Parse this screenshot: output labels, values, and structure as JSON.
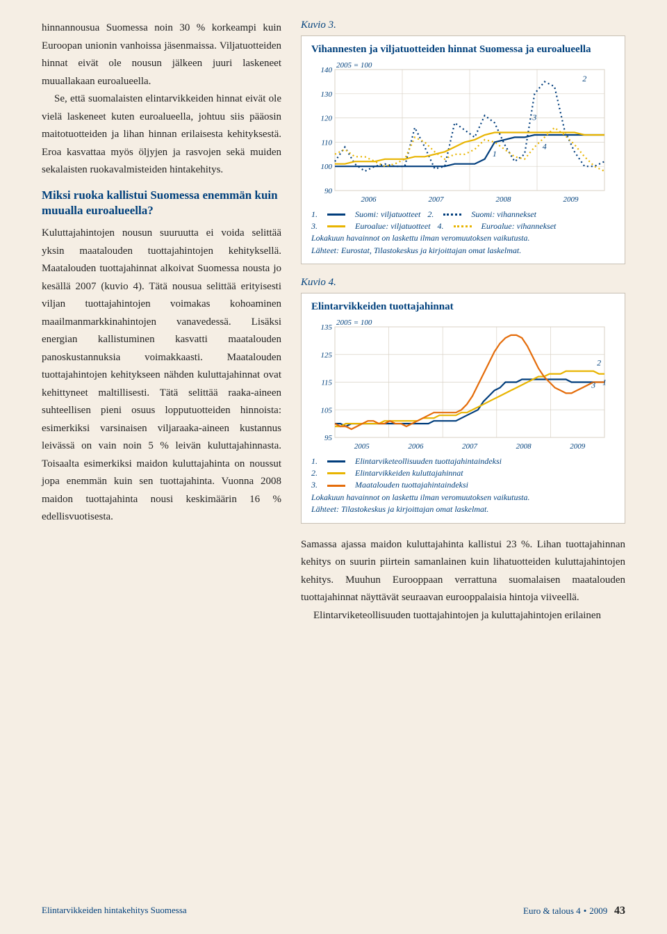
{
  "left": {
    "p1": "hinnannousua Suomessa noin 30 % korkeampi kuin Euroopan unionin vanhoissa jäsenmaissa. Viljatuotteiden hinnat eivät ole nousun jälkeen juuri laskeneet muuallakaan euroalueella.",
    "p1b": "Se, että suomalaisten elintarvikkeiden hinnat eivät ole vielä laskeneet kuten euroalueella, johtuu siis pääosin maitotuotteiden ja lihan hinnan erilaisesta kehityksestä. Eroa kasvattaa myös öljyjen ja rasvojen sekä muiden sekalaisten ruokavalmisteiden hintakehitys.",
    "subhead": "Miksi ruoka kallistui Suomessa enemmän kuin muualla euroalueella?",
    "p2": "Kuluttajahintojen nousun suuruutta ei voida selittää yksin maatalouden tuottajahintojen kehityksellä. Maatalouden tuottajahinnat alkoivat Suomessa nousta jo kesällä 2007 (kuvio 4). Tätä nousua selittää erityisesti viljan tuottajahintojen voimakas kohoaminen maailmanmarkkinahintojen vanavedessä. Lisäksi energian kallistuminen kasvatti maatalouden panoskustannuksia voimakkaasti. Maatalouden tuottajahintojen kehitykseen nähden kuluttajahinnat ovat kehittyneet maltillisesti. Tätä selittää raaka-aineen suhteellisen pieni osuus lopputuotteiden hinnoista: esimerkiksi varsinaisen viljaraaka-aineen kustannus leivässä on vain noin 5 % leivän kuluttajahinnasta. Toisaalta esimerkiksi maidon kuluttajahinta on noussut jopa enemmän kuin sen tuottajahinta. Vuonna 2008 maidon tuottajahinta nousi keskimäärin 16 % edellisvuotisesta."
  },
  "right_body": {
    "p1": "Samassa ajassa maidon kuluttajahinta kallistui 23 %. Lihan tuottajahinnan kehitys on suurin piirtein samanlainen kuin lihatuotteiden kuluttajahintojen kehitys. Muuhun Eurooppaan verrattuna suomalaisen maatalouden tuottajahinnat näyttävät seuraavan eurooppalaisia hintoja viiveellä.",
    "p2": "Elintarviketeollisuuden tuottajahintojen ja kuluttajahintojen erilainen"
  },
  "kuvio3": {
    "label": "Kuvio 3.",
    "title": "Vihannesten ja viljatuotteiden hinnat Suomessa ja euroalueella",
    "base": "2005 = 100",
    "ylim": [
      90,
      140
    ],
    "yticks": [
      90,
      100,
      110,
      120,
      130,
      140
    ],
    "xcats": [
      "2006",
      "2007",
      "2008",
      "2009"
    ],
    "series": {
      "s1": {
        "label": "Suomi: viljatuotteet",
        "color": "#003d7c",
        "style": "solid",
        "y": [
          100,
          100,
          100,
          100,
          100,
          100,
          100,
          100,
          100,
          100,
          100,
          100,
          101,
          101,
          101,
          103,
          110,
          111,
          112,
          112,
          113,
          113,
          113,
          113,
          113,
          113,
          113,
          113
        ]
      },
      "s2": {
        "label": "Suomi: vihannekset",
        "color": "#003d7c",
        "style": "dotted",
        "y": [
          102,
          108,
          101,
          98,
          100,
          101,
          100,
          100,
          116,
          108,
          99,
          100,
          118,
          115,
          112,
          121,
          118,
          109,
          102,
          105,
          130,
          135,
          133,
          115,
          106,
          100,
          100,
          102
        ]
      },
      "s3": {
        "label": "Euroalue: viljatuotteet",
        "color": "#e8b400",
        "style": "solid",
        "y": [
          101,
          101,
          102,
          102,
          102,
          103,
          103,
          103,
          104,
          104,
          105,
          106,
          108,
          110,
          111,
          113,
          114,
          114,
          114,
          114,
          114,
          114,
          114,
          114,
          114,
          113,
          113,
          113
        ]
      },
      "s4": {
        "label": "Euroalue: vihannekset",
        "color": "#e8b400",
        "style": "dotted",
        "y": [
          105,
          107,
          104,
          104,
          102,
          100,
          101,
          103,
          112,
          110,
          106,
          103,
          105,
          105,
          107,
          111,
          110,
          107,
          104,
          103,
          108,
          112,
          116,
          113,
          109,
          104,
          100,
          98
        ]
      }
    },
    "legend1": "1.",
    "legend2": "2.",
    "legend3": "3.",
    "legend4": "4.",
    "note1": "Lokakuun havainnot on laskettu ilman veromuutoksen vaikutusta.",
    "note2": "Lähteet: Eurostat, Tilastokeskus ja kirjoittajan omat laskelmat."
  },
  "kuvio4": {
    "label": "Kuvio 4.",
    "title": "Elintarvikkeiden tuottajahinnat",
    "base": "2005 = 100",
    "ylim": [
      95,
      135
    ],
    "yticks": [
      95,
      105,
      115,
      125,
      135
    ],
    "xcats": [
      "2005",
      "2006",
      "2007",
      "2008",
      "2009"
    ],
    "series": {
      "s1": {
        "label": "Elintarviketeollisuuden tuottajahintaindeksi",
        "color": "#003d7c",
        "y": [
          100,
          100,
          99,
          100,
          100,
          100,
          100,
          100,
          100,
          100,
          100,
          100,
          100,
          100,
          100,
          100,
          100,
          100,
          101,
          101,
          101,
          101,
          101,
          102,
          103,
          104,
          105,
          108,
          110,
          112,
          113,
          115,
          115,
          115,
          116,
          116,
          116,
          116,
          116,
          116,
          116,
          116,
          116,
          115,
          115,
          115,
          115,
          115,
          115,
          115
        ]
      },
      "s2": {
        "label": "Elintarvikkeiden kuluttajahinnat",
        "color": "#e8b400",
        "y": [
          99,
          99,
          100,
          100,
          100,
          100,
          100,
          100,
          100,
          101,
          101,
          101,
          101,
          101,
          101,
          101,
          102,
          102,
          102,
          103,
          103,
          103,
          103,
          104,
          104,
          105,
          106,
          107,
          108,
          109,
          110,
          111,
          112,
          113,
          114,
          115,
          116,
          117,
          117,
          118,
          118,
          118,
          119,
          119,
          119,
          119,
          119,
          119,
          118,
          118
        ]
      },
      "s3": {
        "label": "Maatalouden tuottajahintaindeksi",
        "color": "#e46c0a",
        "y": [
          100,
          99,
          99,
          98,
          99,
          100,
          101,
          101,
          100,
          100,
          101,
          100,
          100,
          99,
          100,
          101,
          102,
          103,
          104,
          104,
          104,
          104,
          104,
          105,
          107,
          110,
          114,
          118,
          122,
          126,
          129,
          131,
          132,
          132,
          131,
          128,
          124,
          120,
          117,
          115,
          113,
          112,
          111,
          111,
          112,
          113,
          114,
          115,
          115,
          115
        ]
      }
    },
    "legend1": "1.",
    "legend2": "2.",
    "legend3": "3.",
    "note1": "Lokakuun havainnot on laskettu ilman veromuutoksen vaikutusta.",
    "note2": "Lähteet: Tilastokeskus ja kirjoittajan omat laskelmat."
  },
  "footer": {
    "left": "Elintarvikkeiden hintakehitys Suomessa",
    "right_a": "Euro & talous 4",
    "right_b": "2009",
    "page": "43"
  },
  "colors": {
    "bg": "#f5eee4",
    "chartbg": "#ffffff",
    "grid": "#d9d2c6",
    "brand": "#00407c"
  }
}
